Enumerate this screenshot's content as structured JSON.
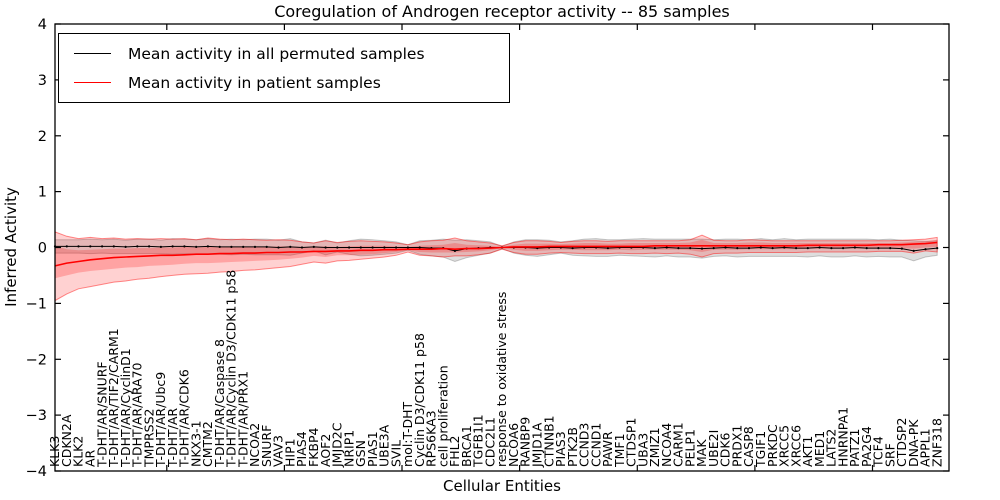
{
  "title": "Coregulation of Androgen receptor activity -- 85 samples",
  "legend": {
    "items": [
      {
        "label": "Mean activity in all permuted samples",
        "color": "#000000"
      },
      {
        "label": "Mean activity in patient samples",
        "color": "#ff0000"
      }
    ]
  },
  "axes": {
    "x_label": "Cellular Entities",
    "y_label": "Inferred Activity"
  },
  "chart_data": {
    "type": "line",
    "title": "Coregulation of Androgen receptor activity -- 85 samples",
    "xlabel": "Cellular Entities",
    "ylabel": "Inferred Activity",
    "ylim": [
      -4,
      4
    ],
    "xlim": [
      0.5,
      76.5
    ],
    "grid": false,
    "legend_position": "upper left",
    "y_major_ticks": [
      4,
      3,
      2,
      1,
      0,
      -1,
      -2,
      -3,
      -4
    ],
    "y_tick_labels": [
      "4",
      "3",
      "2",
      "1",
      "0",
      "−1",
      "−2",
      "−3",
      "−4"
    ],
    "x_major_ticks": [
      10,
      20,
      30,
      40,
      50,
      60,
      70
    ],
    "categories": [
      "KLK3",
      "CDKN2A",
      "KLK2",
      "AR",
      "T-DHT/AR/SNURF",
      "T-DHT/AR/TIF2/CARM1",
      "T-DHT/AR/CyclinD1",
      "T-DHT/AR/ARA70",
      "TMPRSS2",
      "T-DHT/AR/Ubc9",
      "T-DHT/AR",
      "T-DHT/AR/CDK6",
      "NKX3-1",
      "CMTM2",
      "T-DHT/AR/Caspase 8",
      "T-DHT/AR/Cyclin D3/CDK11 p58",
      "T-DHT/AR/PRX1",
      "NCOA2",
      "SNURF",
      "VAV3",
      "HIP1",
      "PIAS4",
      "FKBP4",
      "AOF2",
      "JMJD2C",
      "NRIP1",
      "GSN",
      "PIAS1",
      "UBE3A",
      "SVIL",
      "mol:T-DHT",
      "Cyclin D3/CDK11 p58",
      "RPS6KA3",
      "cell proliferation",
      "FHL2",
      "BRCA1",
      "TGFB1I1",
      "CDC2L1",
      "response to oxidative stress",
      "NCOA6",
      "RANBP9",
      "JMJD1A",
      "CTNNB1",
      "PIAS3",
      "PTK2B",
      "CCND3",
      "CCND1",
      "PAWR",
      "TMF1",
      "CTDSP1",
      "UBA3",
      "ZMIZ1",
      "NCOA4",
      "CARM1",
      "PELP1",
      "MAK",
      "UBE2I",
      "CDK6",
      "PRDX1",
      "CASP8",
      "TGIF1",
      "PRKDC",
      "XRCC5",
      "XRCC6",
      "AKT1",
      "MED1",
      "LATS2",
      "HNRNPA1",
      "PATZ1",
      "PA2G4",
      "TCF4",
      "SRF",
      "CTDSP2",
      "DNA-PK",
      "APPL1",
      "ZNF318"
    ],
    "series": [
      {
        "name": "Mean activity in all permuted samples",
        "color": "#000000",
        "style": "solid_with_dot_markers",
        "values": [
          0.02,
          0.02,
          0.02,
          0.02,
          0.02,
          0.02,
          0.01,
          0.02,
          0.02,
          0.01,
          0.02,
          0.02,
          0.01,
          0.02,
          0.01,
          0.01,
          0.01,
          0.01,
          0.01,
          0.0,
          0.01,
          0.0,
          0.01,
          0.0,
          0.0,
          0.0,
          0.0,
          0.0,
          0.0,
          0.0,
          0.0,
          0.0,
          -0.01,
          -0.01,
          -0.06,
          -0.02,
          -0.01,
          0.0,
          0.0,
          0.0,
          0.0,
          -0.01,
          0.0,
          0.0,
          -0.01,
          0.0,
          0.0,
          -0.01,
          0.0,
          0.0,
          0.0,
          -0.01,
          0.0,
          -0.01,
          -0.01,
          -0.02,
          -0.01,
          0.0,
          -0.01,
          -0.01,
          0.0,
          -0.01,
          0.0,
          -0.01,
          -0.01,
          0.0,
          -0.01,
          -0.01,
          0.0,
          -0.01,
          -0.01,
          -0.01,
          -0.02,
          -0.06,
          -0.03,
          -0.01
        ]
      },
      {
        "name": "Mean activity in patient samples",
        "color": "#ff0000",
        "style": "solid",
        "values": [
          -0.33,
          -0.28,
          -0.25,
          -0.22,
          -0.2,
          -0.18,
          -0.17,
          -0.16,
          -0.15,
          -0.14,
          -0.14,
          -0.13,
          -0.12,
          -0.12,
          -0.11,
          -0.11,
          -0.1,
          -0.1,
          -0.09,
          -0.09,
          -0.08,
          -0.08,
          -0.07,
          -0.07,
          -0.06,
          -0.06,
          -0.05,
          -0.05,
          -0.04,
          -0.04,
          -0.03,
          -0.03,
          -0.03,
          -0.02,
          -0.03,
          -0.02,
          -0.02,
          -0.01,
          0.0,
          0.01,
          0.01,
          0.01,
          0.02,
          0.02,
          0.02,
          0.02,
          0.02,
          0.02,
          0.02,
          0.02,
          0.02,
          0.03,
          0.03,
          0.03,
          0.03,
          0.03,
          0.03,
          0.03,
          0.03,
          0.03,
          0.03,
          0.03,
          0.03,
          0.03,
          0.04,
          0.04,
          0.04,
          0.04,
          0.04,
          0.04,
          0.05,
          0.05,
          0.05,
          0.06,
          0.07,
          0.09
        ]
      }
    ],
    "bands": [
      {
        "name": "permuted samples spread",
        "color": "rgba(0,0,0,0.13)",
        "edge": "rgba(0,0,0,0.20)",
        "center_series": 0,
        "halfwidth": [
          0.12,
          0.12,
          0.12,
          0.13,
          0.12,
          0.13,
          0.12,
          0.13,
          0.13,
          0.12,
          0.14,
          0.13,
          0.13,
          0.14,
          0.13,
          0.14,
          0.13,
          0.14,
          0.14,
          0.13,
          0.15,
          0.1,
          0.07,
          0.13,
          0.08,
          0.12,
          0.15,
          0.14,
          0.12,
          0.1,
          0.05,
          0.12,
          0.14,
          0.16,
          0.19,
          0.16,
          0.13,
          0.1,
          0.02,
          0.1,
          0.14,
          0.15,
          0.13,
          0.1,
          0.13,
          0.15,
          0.16,
          0.15,
          0.14,
          0.15,
          0.16,
          0.16,
          0.15,
          0.16,
          0.16,
          0.17,
          0.15,
          0.15,
          0.16,
          0.15,
          0.16,
          0.15,
          0.16,
          0.15,
          0.16,
          0.15,
          0.16,
          0.16,
          0.15,
          0.16,
          0.15,
          0.16,
          0.15,
          0.18,
          0.14,
          0.13
        ]
      },
      {
        "name": "patient samples spread (outer)",
        "color": "rgba(255,0,0,0.18)",
        "edge": "rgba(255,0,0,0.45)",
        "lo": [
          -0.95,
          -0.83,
          -0.74,
          -0.7,
          -0.66,
          -0.62,
          -0.6,
          -0.57,
          -0.55,
          -0.52,
          -0.5,
          -0.48,
          -0.47,
          -0.46,
          -0.44,
          -0.43,
          -0.41,
          -0.4,
          -0.38,
          -0.36,
          -0.34,
          -0.3,
          -0.26,
          -0.28,
          -0.24,
          -0.23,
          -0.21,
          -0.19,
          -0.17,
          -0.14,
          -0.08,
          -0.14,
          -0.15,
          -0.17,
          -0.15,
          -0.15,
          -0.13,
          -0.1,
          -0.03,
          -0.09,
          -0.12,
          -0.12,
          -0.1,
          -0.09,
          -0.1,
          -0.11,
          -0.11,
          -0.11,
          -0.1,
          -0.11,
          -0.11,
          -0.1,
          -0.11,
          -0.1,
          -0.12,
          -0.17,
          -0.11,
          -0.1,
          -0.1,
          -0.09,
          -0.09,
          -0.09,
          -0.09,
          -0.09,
          -0.08,
          -0.08,
          -0.08,
          -0.08,
          -0.08,
          -0.08,
          -0.07,
          -0.07,
          -0.07,
          -0.1,
          -0.06,
          -0.08
        ],
        "hi": [
          0.28,
          0.2,
          0.16,
          0.18,
          0.16,
          0.17,
          0.15,
          0.16,
          0.15,
          0.16,
          0.15,
          0.16,
          0.14,
          0.17,
          0.15,
          0.14,
          0.15,
          0.14,
          0.13,
          0.14,
          0.13,
          0.1,
          0.08,
          0.12,
          0.09,
          0.11,
          0.12,
          0.11,
          0.1,
          0.08,
          0.05,
          0.1,
          0.12,
          0.13,
          0.17,
          0.12,
          0.1,
          0.08,
          0.03,
          0.09,
          0.12,
          0.12,
          0.11,
          0.09,
          0.11,
          0.12,
          0.12,
          0.11,
          0.12,
          0.12,
          0.12,
          0.12,
          0.12,
          0.12,
          0.14,
          0.22,
          0.13,
          0.12,
          0.12,
          0.14,
          0.13,
          0.12,
          0.12,
          0.12,
          0.12,
          0.12,
          0.12,
          0.12,
          0.12,
          0.12,
          0.12,
          0.12,
          0.13,
          0.14,
          0.15,
          0.18
        ]
      },
      {
        "name": "patient samples spread (inner)",
        "color": "rgba(255,0,0,0.22)",
        "edge": "none",
        "lo": [
          -0.55,
          -0.5,
          -0.45,
          -0.42,
          -0.4,
          -0.38,
          -0.36,
          -0.35,
          -0.33,
          -0.32,
          -0.31,
          -0.29,
          -0.28,
          -0.28,
          -0.27,
          -0.26,
          -0.25,
          -0.24,
          -0.23,
          -0.22,
          -0.2,
          -0.18,
          -0.15,
          -0.17,
          -0.14,
          -0.14,
          -0.13,
          -0.12,
          -0.1,
          -0.08,
          -0.05,
          -0.08,
          -0.09,
          -0.09,
          -0.09,
          -0.08,
          -0.07,
          -0.05,
          -0.01,
          -0.04,
          -0.06,
          -0.06,
          -0.05,
          -0.04,
          -0.04,
          -0.05,
          -0.05,
          -0.05,
          -0.04,
          -0.05,
          -0.04,
          -0.04,
          -0.04,
          -0.04,
          -0.05,
          -0.08,
          -0.04,
          -0.04,
          -0.04,
          -0.03,
          -0.03,
          -0.03,
          -0.03,
          -0.03,
          -0.02,
          -0.02,
          -0.02,
          -0.02,
          -0.02,
          -0.02,
          -0.01,
          -0.01,
          -0.01,
          -0.02,
          0.0,
          0.01
        ],
        "hi": [
          0.03,
          -0.03,
          -0.05,
          -0.04,
          -0.03,
          -0.02,
          -0.02,
          -0.01,
          -0.01,
          0.0,
          0.0,
          0.01,
          0.0,
          0.01,
          0.01,
          0.01,
          0.01,
          0.01,
          0.01,
          0.02,
          0.02,
          0.01,
          0.01,
          0.02,
          0.01,
          0.02,
          0.03,
          0.03,
          0.03,
          0.02,
          0.01,
          0.03,
          0.04,
          0.05,
          0.08,
          0.05,
          0.04,
          0.03,
          0.01,
          0.05,
          0.07,
          0.07,
          0.07,
          0.06,
          0.07,
          0.08,
          0.08,
          0.07,
          0.07,
          0.08,
          0.08,
          0.08,
          0.08,
          0.08,
          0.09,
          0.14,
          0.08,
          0.08,
          0.08,
          0.09,
          0.09,
          0.08,
          0.08,
          0.08,
          0.08,
          0.08,
          0.08,
          0.08,
          0.08,
          0.08,
          0.08,
          0.08,
          0.09,
          0.1,
          0.11,
          0.14
        ]
      }
    ]
  }
}
